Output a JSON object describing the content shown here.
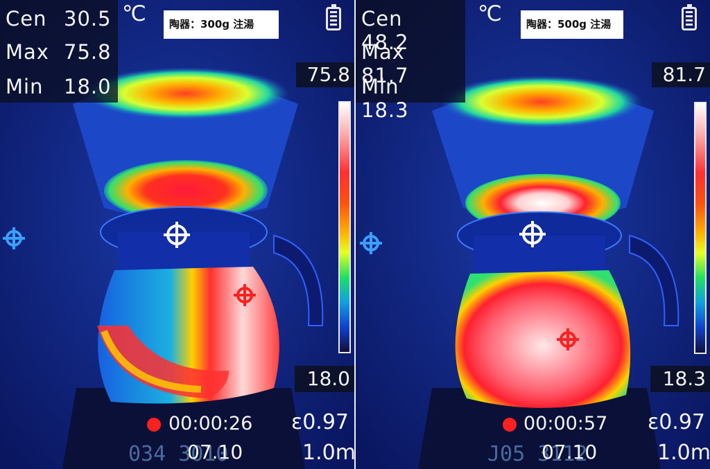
{
  "panels": [
    {
      "center_temp": "30.5",
      "max_temp": "75.8",
      "min_temp": "18.0",
      "unit": "℃",
      "label": "陶器：300g 注湯",
      "scale_max": "75.8",
      "scale_min": "18.0",
      "timer": "00:00:26",
      "emissivity": "ε0.97",
      "distance": "1.0m",
      "scale_text": "07.10"
    },
    {
      "center_temp": "48.2",
      "max_temp": "81.7",
      "min_temp": "18.3",
      "unit": "℃",
      "label": "陶器：500g 注湯",
      "scale_max": "81.7",
      "scale_min": "18.3",
      "timer": "00:00:57",
      "emissivity": "ε0.97",
      "distance": "1.0m",
      "scale_text": "07.10"
    }
  ],
  "labels": {
    "cen": "Cen",
    "max": "Max",
    "min": "Min"
  },
  "colors": {
    "background": "#0d1f8a",
    "hot": "#ff2a2a",
    "hottest": "#ffffff",
    "warm": "#ffd000",
    "mid": "#20e060",
    "cool": "#1090e8",
    "recording": "#ff2020"
  },
  "icons": {
    "battery": "battery-icon",
    "crosshair": "crosshair-icon",
    "record": "record-dot-icon"
  }
}
